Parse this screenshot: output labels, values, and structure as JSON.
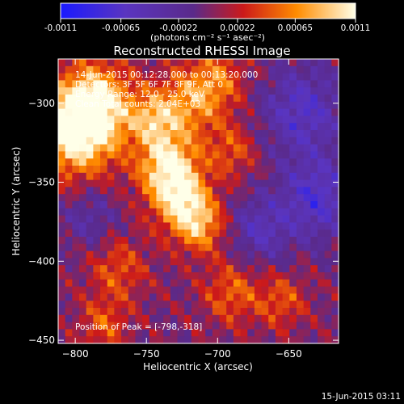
{
  "chart_data": {
    "type": "heatmap",
    "title": "Reconstructed RHESSI Image",
    "xlabel": "Heliocentric X (arcsec)",
    "ylabel": "Heliocentric Y (arcsec)",
    "xlim": [
      -812,
      -615
    ],
    "ylim": [
      -452,
      -272
    ],
    "x_ticks": [
      -800,
      -750,
      -700,
      -650
    ],
    "y_ticks": [
      -300,
      -350,
      -400,
      -450
    ],
    "colorbar": {
      "range": [
        -0.0011,
        0.0011
      ],
      "ticks": [
        {
          "value": -0.0011,
          "label": "-0.0011"
        },
        {
          "value": -0.00065,
          "label": "-0.00065"
        },
        {
          "value": -0.00022,
          "label": "-0.00022"
        },
        {
          "value": 0.00022,
          "label": "0.00022"
        },
        {
          "value": 0.00065,
          "label": "0.00065"
        },
        {
          "value": 0.0011,
          "label": "0.0011"
        }
      ],
      "unit_label": "(photons cm⁻² s⁻¹ asec⁻²)"
    },
    "annotations": [
      "14-Jun-2015 00:12:28.000 to 00:13:20.000",
      "Detectors: 3F 5F 6F 7F 8F 9F, Att 0",
      "Energy Range: 12.0 - 25.0 keV",
      "Clean     Total counts: 2.04E+03"
    ],
    "peak_label": "Position of Peak = [-798,-318]",
    "peak_position": [
      -798,
      -318
    ],
    "emission_features": [
      {
        "x": -800,
        "y": -318,
        "sigma": 20,
        "amp": 1.0
      },
      {
        "x": -785,
        "y": -300,
        "sigma": 18,
        "amp": 0.8
      },
      {
        "x": -735,
        "y": -340,
        "sigma": 15,
        "amp": 0.9
      },
      {
        "x": -725,
        "y": -362,
        "sigma": 14,
        "amp": 0.75
      },
      {
        "x": -712,
        "y": -378,
        "sigma": 12,
        "amp": 0.6
      },
      {
        "x": -745,
        "y": -310,
        "sigma": 12,
        "amp": 0.6
      },
      {
        "x": -720,
        "y": -300,
        "sigma": 16,
        "amp": 0.55
      },
      {
        "x": -700,
        "y": -285,
        "sigma": 14,
        "amp": 0.45
      },
      {
        "x": -690,
        "y": -330,
        "sigma": 12,
        "amp": 0.4
      },
      {
        "x": -770,
        "y": -405,
        "sigma": 14,
        "amp": 0.4
      },
      {
        "x": -780,
        "y": -440,
        "sigma": 12,
        "amp": 0.4
      },
      {
        "x": -690,
        "y": -420,
        "sigma": 14,
        "amp": 0.45
      },
      {
        "x": -655,
        "y": -425,
        "sigma": 12,
        "amp": 0.4
      },
      {
        "x": -640,
        "y": -305,
        "sigma": 20,
        "amp": -0.55
      },
      {
        "x": -630,
        "y": -360,
        "sigma": 18,
        "amp": -0.6
      },
      {
        "x": -670,
        "y": -380,
        "sigma": 15,
        "amp": -0.45
      },
      {
        "x": -790,
        "y": -372,
        "sigma": 14,
        "amp": -0.3
      }
    ]
  },
  "timestamp": "15-Jun-2015 03:11"
}
